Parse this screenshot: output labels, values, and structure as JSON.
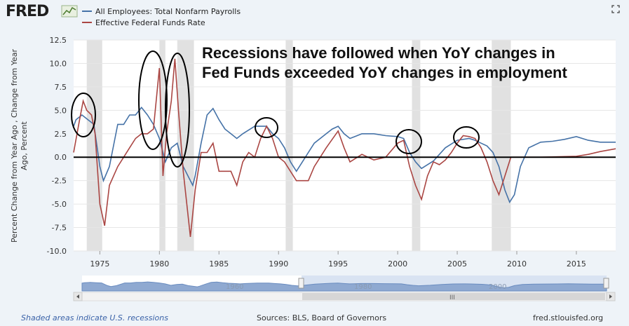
{
  "header": {
    "logo_text": "FRED",
    "expand_icon": "expand-icon"
  },
  "annotation": {
    "line1": "Recessions have followed when YoY changes in",
    "line2": "Fed Funds exceeded YoY changes in employment"
  },
  "footer": {
    "recession_note": "Shaded areas indicate U.S. recessions",
    "sources": "Sources: BLS, Board of Governors",
    "site": "fred.stlouisfed.org"
  },
  "colors": {
    "payrolls": "#4572a7",
    "fedfunds": "#aa4643",
    "recession": "#e1e1e1",
    "plot_bg": "#ffffff",
    "page_bg": "#eef3f8",
    "navigator_fill": "#b8c9e3"
  },
  "chart_data": {
    "type": "line",
    "title": "",
    "xlabel": "",
    "ylabel": "Percent Change from Year Ago , Change from Year Ago, Percent",
    "xlim": [
      1972.8,
      2018.3
    ],
    "ylim": [
      -10.0,
      12.5
    ],
    "y_ticks": [
      "12.5",
      "10.0",
      "7.5",
      "5.0",
      "2.5",
      "0.0",
      "-2.5",
      "-5.0",
      "-7.5",
      "-10.0"
    ],
    "x_ticks": [
      "1975",
      "1980",
      "1985",
      "1990",
      "1995",
      "2000",
      "2005",
      "2010",
      "2015"
    ],
    "navigator_ticks": [
      "1960",
      "1980",
      "2000"
    ],
    "legend_position": "top-left",
    "grid": true,
    "recessions": [
      [
        1973.9,
        1975.2
      ],
      [
        1980.0,
        1980.5
      ],
      [
        1981.5,
        1982.9
      ],
      [
        1990.6,
        1991.2
      ],
      [
        2001.2,
        2001.9
      ],
      [
        2007.9,
        2009.5
      ]
    ],
    "series": [
      {
        "name": "All Employees: Total Nonfarm Payrolls",
        "points": [
          [
            1972.8,
            3.3
          ],
          [
            1973.0,
            4.0
          ],
          [
            1973.5,
            4.5
          ],
          [
            1974.0,
            4.0
          ],
          [
            1974.5,
            3.5
          ],
          [
            1975.0,
            -1.0
          ],
          [
            1975.3,
            -2.5
          ],
          [
            1975.8,
            -1.0
          ],
          [
            1976.5,
            3.5
          ],
          [
            1977.0,
            3.5
          ],
          [
            1977.5,
            4.5
          ],
          [
            1978.0,
            4.5
          ],
          [
            1978.5,
            5.3
          ],
          [
            1979.0,
            4.5
          ],
          [
            1979.5,
            3.5
          ],
          [
            1980.0,
            2.0
          ],
          [
            1980.5,
            -0.5
          ],
          [
            1981.0,
            1.0
          ],
          [
            1981.5,
            1.5
          ],
          [
            1982.0,
            -1.0
          ],
          [
            1982.8,
            -3.0
          ],
          [
            1983.0,
            -2.0
          ],
          [
            1983.5,
            1.5
          ],
          [
            1984.0,
            4.5
          ],
          [
            1984.5,
            5.2
          ],
          [
            1985.0,
            4.0
          ],
          [
            1985.5,
            3.0
          ],
          [
            1986.0,
            2.5
          ],
          [
            1986.5,
            2.0
          ],
          [
            1987.0,
            2.5
          ],
          [
            1988.0,
            3.3
          ],
          [
            1989.0,
            3.3
          ],
          [
            1989.5,
            2.5
          ],
          [
            1990.0,
            2.0
          ],
          [
            1990.5,
            1.0
          ],
          [
            1991.0,
            -0.5
          ],
          [
            1991.5,
            -1.5
          ],
          [
            1992.0,
            -0.5
          ],
          [
            1992.5,
            0.5
          ],
          [
            1993.0,
            1.5
          ],
          [
            1994.0,
            2.5
          ],
          [
            1994.5,
            3.0
          ],
          [
            1995.0,
            3.3
          ],
          [
            1995.5,
            2.5
          ],
          [
            1996.0,
            2.0
          ],
          [
            1997.0,
            2.5
          ],
          [
            1998.0,
            2.5
          ],
          [
            1999.0,
            2.3
          ],
          [
            2000.0,
            2.2
          ],
          [
            2000.5,
            2.0
          ],
          [
            2001.0,
            0.5
          ],
          [
            2001.5,
            -0.5
          ],
          [
            2002.0,
            -1.2
          ],
          [
            2002.5,
            -0.8
          ],
          [
            2003.0,
            -0.4
          ],
          [
            2004.0,
            1.0
          ],
          [
            2005.0,
            1.8
          ],
          [
            2006.0,
            2.0
          ],
          [
            2006.5,
            1.8
          ],
          [
            2007.0,
            1.5
          ],
          [
            2007.5,
            1.2
          ],
          [
            2008.0,
            0.5
          ],
          [
            2008.5,
            -1.0
          ],
          [
            2009.0,
            -3.5
          ],
          [
            2009.4,
            -4.8
          ],
          [
            2009.8,
            -4.0
          ],
          [
            2010.3,
            -1.0
          ],
          [
            2011.0,
            1.0
          ],
          [
            2012.0,
            1.6
          ],
          [
            2013.0,
            1.7
          ],
          [
            2014.0,
            1.9
          ],
          [
            2015.0,
            2.2
          ],
          [
            2016.0,
            1.8
          ],
          [
            2017.0,
            1.6
          ],
          [
            2018.3,
            1.6
          ]
        ]
      },
      {
        "name": "Effective Federal Funds Rate",
        "points": [
          [
            1972.8,
            0.5
          ],
          [
            1973.3,
            4.0
          ],
          [
            1973.6,
            6.0
          ],
          [
            1973.9,
            5.0
          ],
          [
            1974.3,
            4.5
          ],
          [
            1974.6,
            2.5
          ],
          [
            1975.0,
            -5.0
          ],
          [
            1975.4,
            -7.3
          ],
          [
            1975.8,
            -3.0
          ],
          [
            1976.5,
            -1.0
          ],
          [
            1977.0,
            0.0
          ],
          [
            1977.5,
            1.0
          ],
          [
            1978.0,
            2.0
          ],
          [
            1978.5,
            2.5
          ],
          [
            1979.0,
            2.5
          ],
          [
            1979.5,
            3.0
          ],
          [
            1980.0,
            9.5
          ],
          [
            1980.3,
            -2.0
          ],
          [
            1980.6,
            2.5
          ],
          [
            1981.0,
            6.0
          ],
          [
            1981.3,
            10.5
          ],
          [
            1981.6,
            5.0
          ],
          [
            1982.0,
            -1.5
          ],
          [
            1982.3,
            -5.0
          ],
          [
            1982.6,
            -8.5
          ],
          [
            1983.0,
            -3.5
          ],
          [
            1983.5,
            0.5
          ],
          [
            1984.0,
            0.5
          ],
          [
            1984.5,
            1.5
          ],
          [
            1985.0,
            -1.5
          ],
          [
            1985.5,
            -1.5
          ],
          [
            1986.0,
            -1.5
          ],
          [
            1986.5,
            -3.0
          ],
          [
            1987.0,
            -0.5
          ],
          [
            1987.5,
            0.5
          ],
          [
            1988.0,
            0.0
          ],
          [
            1988.5,
            2.0
          ],
          [
            1989.0,
            3.3
          ],
          [
            1989.5,
            2.0
          ],
          [
            1990.0,
            0.0
          ],
          [
            1990.5,
            -0.5
          ],
          [
            1991.0,
            -1.5
          ],
          [
            1991.5,
            -2.5
          ],
          [
            1992.0,
            -2.5
          ],
          [
            1992.5,
            -2.5
          ],
          [
            1993.0,
            -1.0
          ],
          [
            1994.0,
            1.0
          ],
          [
            1995.0,
            2.8
          ],
          [
            1995.5,
            1.0
          ],
          [
            1996.0,
            -0.5
          ],
          [
            1997.0,
            0.3
          ],
          [
            1998.0,
            -0.3
          ],
          [
            1999.0,
            0.0
          ],
          [
            2000.0,
            1.5
          ],
          [
            2000.5,
            1.8
          ],
          [
            2001.0,
            -1.0
          ],
          [
            2001.5,
            -3.0
          ],
          [
            2002.0,
            -4.5
          ],
          [
            2002.5,
            -2.0
          ],
          [
            2003.0,
            -0.5
          ],
          [
            2003.5,
            -0.8
          ],
          [
            2004.0,
            -0.3
          ],
          [
            2004.5,
            0.5
          ],
          [
            2005.0,
            1.5
          ],
          [
            2005.5,
            2.3
          ],
          [
            2006.0,
            2.2
          ],
          [
            2006.5,
            2.0
          ],
          [
            2007.0,
            1.0
          ],
          [
            2007.5,
            -0.5
          ],
          [
            2008.0,
            -2.5
          ],
          [
            2008.5,
            -4.0
          ],
          [
            2009.0,
            -2.0
          ],
          [
            2009.5,
            0.0
          ],
          [
            2010.0,
            0.0
          ],
          [
            2012.0,
            0.0
          ],
          [
            2015.0,
            0.1
          ],
          [
            2016.0,
            0.3
          ],
          [
            2017.0,
            0.6
          ],
          [
            2018.3,
            0.9
          ]
        ]
      }
    ]
  }
}
